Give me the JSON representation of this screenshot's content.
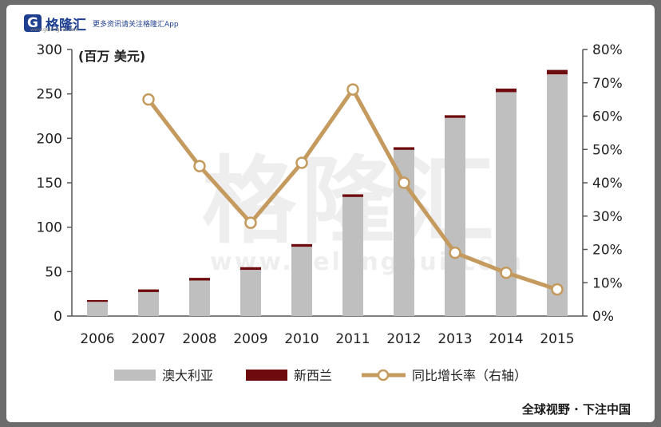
{
  "header": {
    "brand_letter": "G",
    "brand_name": "格隆汇",
    "brand_site": "www.gelonghui.com",
    "slogan": "更多资讯请关注格隆汇App"
  },
  "watermark": {
    "text": "格隆汇",
    "url": "www.gelonghui.com"
  },
  "caption": "全球视野 · 下注中国",
  "chart_data": {
    "type": "bar",
    "unit_label": "(百万 美元)",
    "categories": [
      "2006",
      "2007",
      "2008",
      "2009",
      "2010",
      "2011",
      "2012",
      "2013",
      "2014",
      "2015"
    ],
    "series": [
      {
        "name": "澳大利亚",
        "type": "bar-stacked",
        "color": "#c0bfc0",
        "values": [
          16,
          27,
          40,
          52,
          78,
          134,
          187,
          223,
          252,
          272
        ]
      },
      {
        "name": "新西兰",
        "type": "bar-stacked",
        "color": "#6e0b0e",
        "values": [
          2,
          3,
          3,
          3,
          3,
          3,
          3,
          3,
          4,
          5
        ]
      },
      {
        "name": "同比增长率（右轴）",
        "type": "line",
        "axis": "right",
        "color": "#c49a5e",
        "values": [
          null,
          65,
          45,
          28,
          46,
          68,
          40,
          19,
          13,
          8
        ]
      }
    ],
    "y_left": {
      "min": 0,
      "max": 300,
      "ticks": [
        "0",
        "50",
        "100",
        "150",
        "200",
        "250",
        "300"
      ]
    },
    "y_right": {
      "min": 0,
      "max": 80,
      "ticks": [
        "0%",
        "10%",
        "20%",
        "30%",
        "40%",
        "50%",
        "60%",
        "70%",
        "80%"
      ]
    },
    "legend_position": "bottom",
    "grid": false
  }
}
